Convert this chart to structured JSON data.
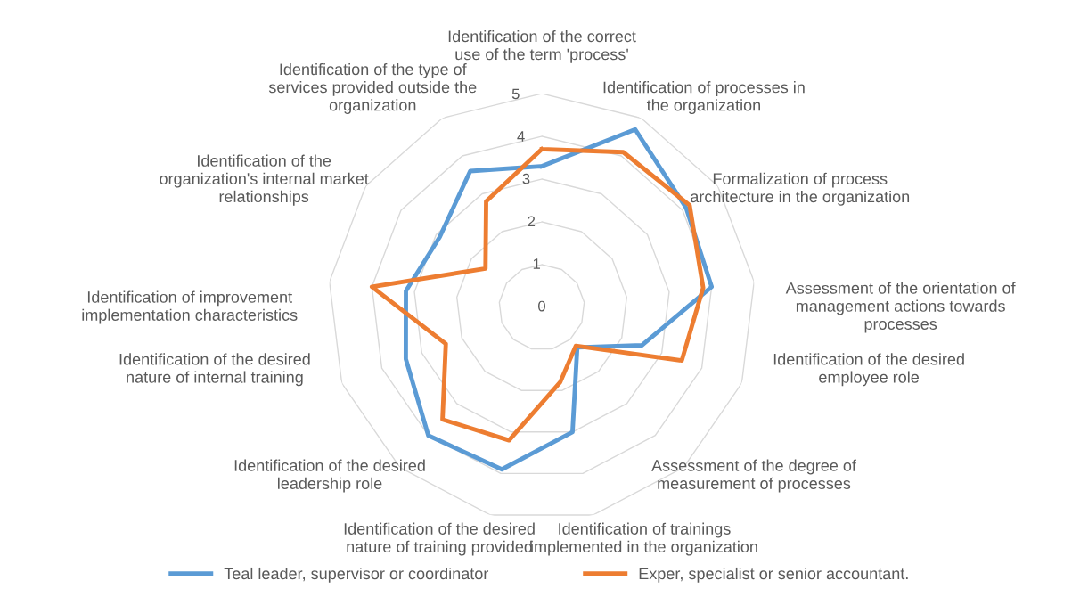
{
  "chart_data": {
    "type": "radar",
    "categories": [
      "Identification of the correct use of the term 'process'",
      "Identification of processes in the organization",
      "Formalization of process architecture in the organization",
      "Assessment of the orientation of management actions towards processes",
      "Identification of the desired employee role",
      "Assessment of the degree of measurement of processes",
      "Identification of trainings implemented in the organization",
      "Identification of the desired nature of training provided",
      "Identification of the desired leadership role",
      "Identification of the desired nature of internal training",
      "Identification of improvement implementation characteristics",
      "Identification of the organization's internal market relationships",
      "Identification of the type of services provided outside the organization"
    ],
    "series": [
      {
        "name": "Teal leader, supervisor or coordinator",
        "color": "#5b9bd5",
        "values": [
          3.3,
          4.7,
          4.1,
          4.0,
          2.5,
          1.25,
          3.0,
          3.9,
          4.0,
          3.4,
          3.2,
          2.9,
          3.6
        ]
      },
      {
        "name": "Exper, specialist or senior accountant.",
        "color": "#ed7d31",
        "values": [
          3.7,
          4.1,
          4.2,
          3.8,
          3.5,
          1.2,
          1.8,
          3.2,
          3.5,
          2.4,
          4.0,
          1.6,
          2.8
        ]
      }
    ],
    "ylim": [
      0,
      5
    ],
    "yticks": [
      0,
      1,
      2,
      3,
      4,
      5
    ],
    "grid": true,
    "legend": "bottom",
    "marker": "none",
    "line_style": "solid"
  }
}
